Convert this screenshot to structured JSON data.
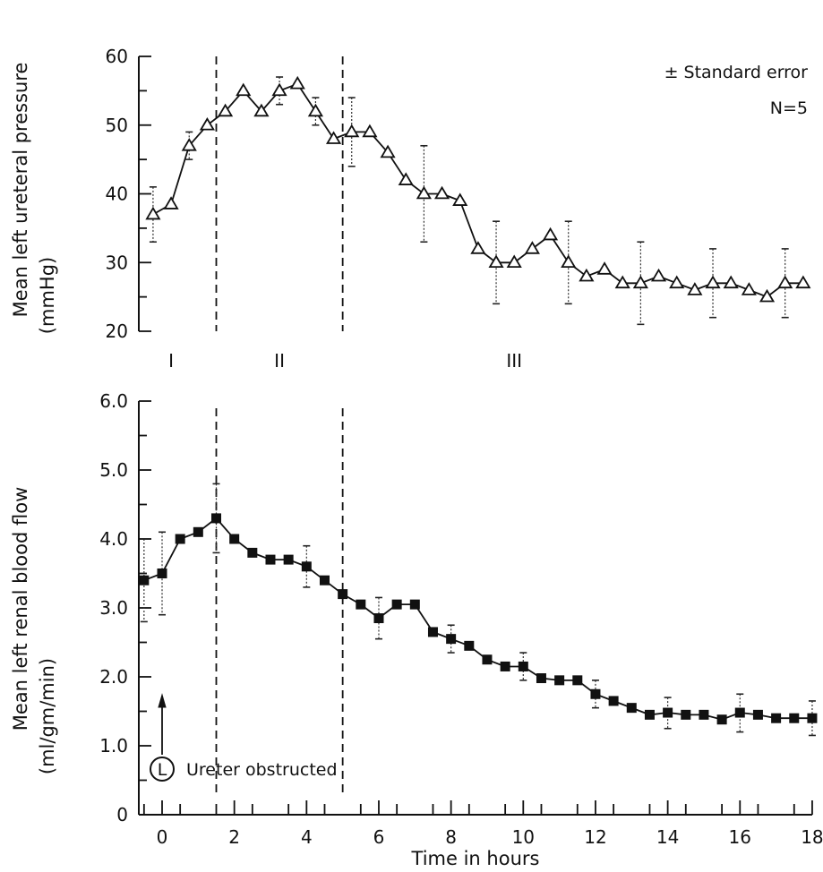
{
  "chart_data": [
    {
      "type": "line",
      "id": "top",
      "ylabel": "Mean left ureteral pressure",
      "yunit": "(mmHg)",
      "ylim": [
        20,
        60
      ],
      "yticks": [
        "20",
        "30",
        "40",
        "50",
        "60"
      ],
      "xlim": [
        -0.75,
        18
      ],
      "note_line1": "± Standard error",
      "note_line2": "N=5",
      "phases": [
        "I",
        "II",
        "III"
      ],
      "marker": "open-triangle",
      "series": [
        {
          "x": [
            -0.25,
            0.25,
            0.75,
            1.25,
            1.75,
            2.25,
            2.75,
            3.25,
            3.75,
            4.25,
            4.75,
            5.25,
            5.75,
            6.25,
            6.75,
            7.25,
            7.75,
            8.25,
            8.75,
            9.25,
            9.75,
            10.25,
            10.75,
            11.25,
            11.75,
            12.25,
            12.75,
            13.25,
            13.75,
            14.25,
            14.75,
            15.25,
            15.75,
            16.25,
            16.75,
            17.25,
            17.75
          ],
          "values": [
            37,
            38.5,
            47,
            50,
            52,
            55,
            52,
            55,
            56,
            52,
            48,
            49,
            49,
            46,
            42,
            40,
            40,
            39,
            32,
            30,
            30,
            32,
            34,
            30,
            28,
            29,
            27,
            27,
            28,
            27,
            26,
            27,
            27,
            26,
            25,
            27,
            27
          ],
          "err_hi": [
            41,
            null,
            49,
            null,
            null,
            null,
            null,
            57,
            null,
            54,
            null,
            54,
            null,
            null,
            null,
            47,
            null,
            null,
            null,
            36,
            null,
            null,
            null,
            36,
            null,
            null,
            null,
            33,
            null,
            null,
            null,
            32,
            null,
            null,
            null,
            32,
            null
          ],
          "err_lo": [
            33,
            null,
            45,
            null,
            null,
            null,
            null,
            53,
            null,
            50,
            null,
            44,
            null,
            null,
            null,
            33,
            null,
            null,
            null,
            24,
            null,
            null,
            null,
            24,
            null,
            null,
            null,
            21,
            null,
            null,
            null,
            22,
            null,
            null,
            null,
            22,
            null
          ]
        }
      ]
    },
    {
      "type": "line",
      "id": "bottom",
      "ylabel": "Mean left renal blood flow",
      "yunit": "(ml/gm/min)",
      "ylim": [
        0,
        6
      ],
      "yticks": [
        "0",
        "1.0",
        "2.0",
        "3.0",
        "4.0",
        "5.0",
        "6.0"
      ],
      "xlabel": "Time in hours",
      "xticks": [
        "0",
        "2",
        "4",
        "6",
        "8",
        "10",
        "12",
        "14",
        "16",
        "18"
      ],
      "xlim": [
        -0.75,
        18
      ],
      "marker": "filled-square",
      "annotation_symbol": "L",
      "annotation_text": "Ureter obstructed",
      "series": [
        {
          "x": [
            -0.5,
            0,
            0.5,
            1,
            1.5,
            2,
            2.5,
            3,
            3.5,
            4,
            4.5,
            5,
            5.5,
            6,
            6.5,
            7,
            7.5,
            8,
            8.5,
            9,
            9.5,
            10,
            10.5,
            11,
            11.5,
            12,
            12.5,
            13,
            13.5,
            14,
            14.5,
            15,
            15.5,
            16,
            16.5,
            17,
            17.5,
            18
          ],
          "values": [
            3.4,
            3.5,
            4.0,
            4.1,
            4.3,
            4.0,
            3.8,
            3.7,
            3.7,
            3.6,
            3.4,
            3.2,
            3.05,
            2.85,
            3.05,
            3.05,
            2.65,
            2.55,
            2.45,
            2.25,
            2.15,
            2.15,
            1.98,
            1.95,
            1.95,
            1.75,
            1.65,
            1.55,
            1.45,
            1.48,
            1.45,
            1.45,
            1.38,
            1.48,
            1.45,
            1.4,
            1.4,
            1.4
          ],
          "err_hi": [
            4.0,
            4.1,
            null,
            null,
            4.8,
            null,
            null,
            null,
            null,
            3.9,
            null,
            null,
            null,
            3.15,
            null,
            null,
            null,
            2.75,
            null,
            null,
            null,
            2.35,
            null,
            null,
            null,
            1.95,
            null,
            null,
            null,
            1.7,
            null,
            null,
            null,
            1.75,
            null,
            null,
            null,
            1.65
          ],
          "err_lo": [
            2.8,
            2.9,
            null,
            null,
            3.8,
            null,
            null,
            null,
            null,
            3.3,
            null,
            null,
            null,
            2.55,
            null,
            null,
            null,
            2.35,
            null,
            null,
            null,
            1.95,
            null,
            null,
            null,
            1.55,
            null,
            null,
            null,
            1.25,
            null,
            null,
            null,
            1.2,
            null,
            null,
            null,
            1.15
          ]
        }
      ]
    }
  ]
}
